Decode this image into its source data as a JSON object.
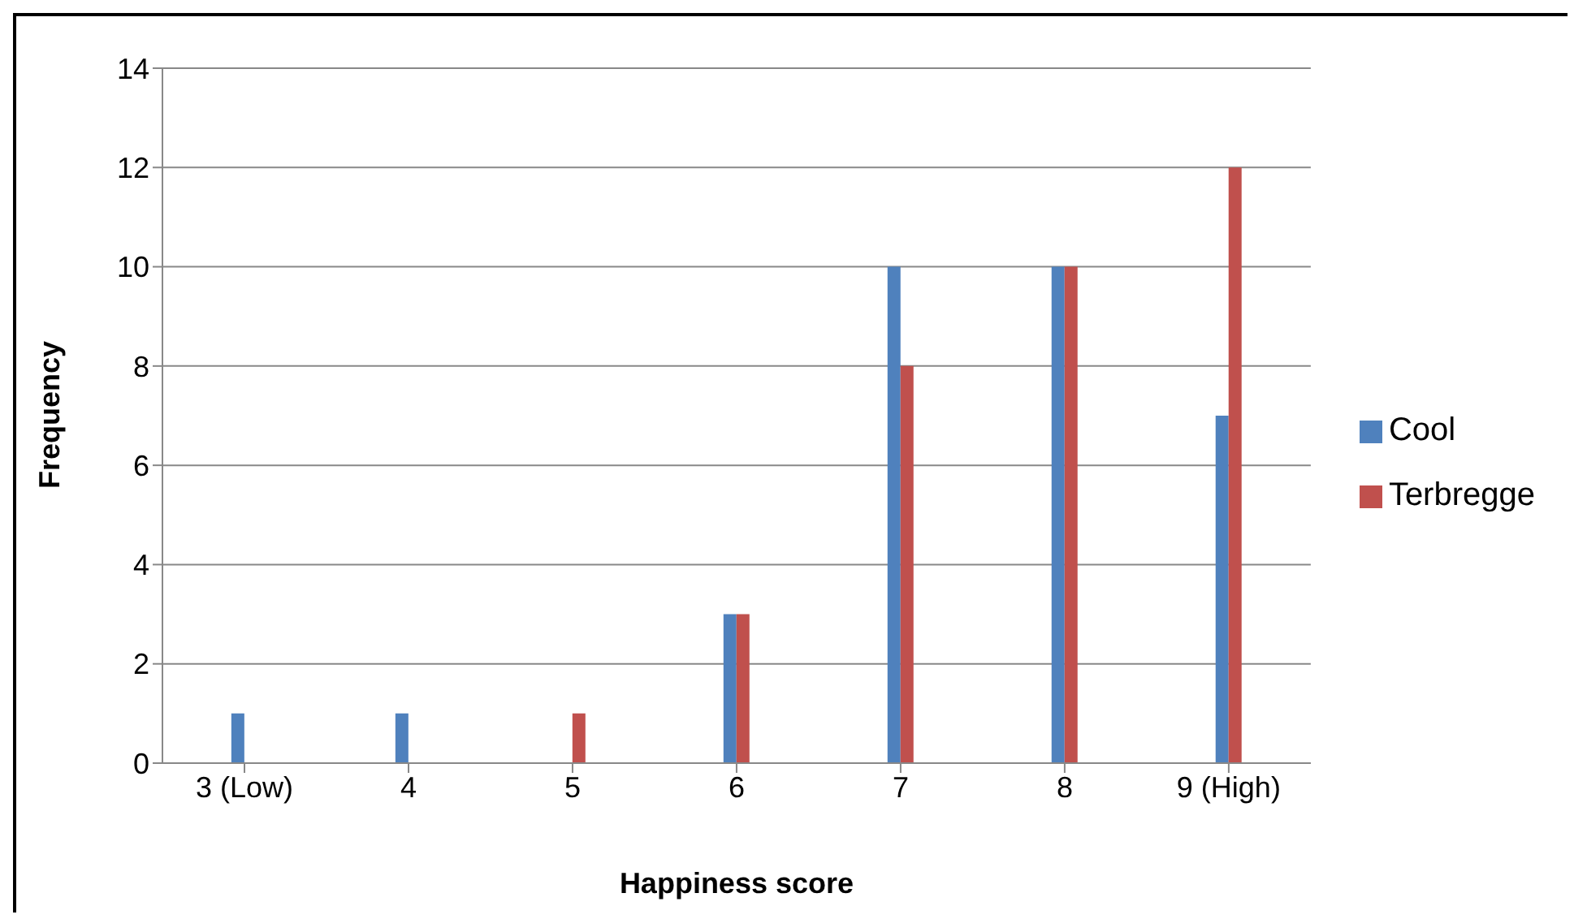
{
  "chart_data": {
    "type": "bar",
    "xlabel": "Happiness score",
    "ylabel": "Frequency",
    "categories": [
      "3 (Low)",
      "4",
      "5",
      "6",
      "7",
      "8",
      "9 (High)"
    ],
    "series": [
      {
        "name": "Cool",
        "color": "#4f81bd",
        "values": [
          1,
          1,
          0,
          3,
          10,
          10,
          7
        ]
      },
      {
        "name": "Terbregge",
        "color": "#c0504d",
        "values": [
          0,
          0,
          1,
          3,
          8,
          10,
          12
        ]
      }
    ],
    "ylim": [
      0,
      14
    ],
    "yticks": [
      0,
      2,
      4,
      6,
      8,
      10,
      12,
      14
    ],
    "grid": "y",
    "legend": "right"
  }
}
